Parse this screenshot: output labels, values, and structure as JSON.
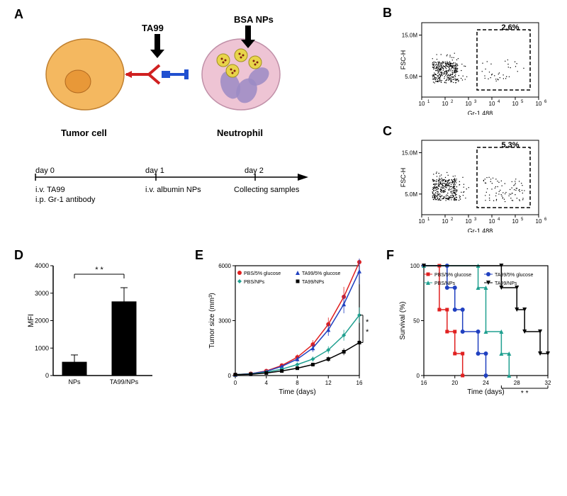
{
  "panelA": {
    "label": "A",
    "ta99_label": "TA99",
    "bsa_label": "BSA NPs",
    "tumor_label": "Tumor cell",
    "neutrophil_label": "Neutrophil",
    "timeline": {
      "day0_label": "day 0",
      "day0_text1": "i.v. TA99",
      "day0_text2": "i.p. Gr-1 antibody",
      "day1_label": "day 1",
      "day1_text": "i.v. albumin NPs",
      "day2_label": "day 2",
      "day2_text": "Collecting samples"
    },
    "tumor_color": "#f4b860",
    "tumor_nucleus": "#e89838",
    "neutrophil_color": "#eec4d4",
    "neutrophil_nucleus": "#9b8bc4",
    "np_color": "#e8d44a",
    "antibody_red": "#d02020",
    "antibody_blue": "#2050d0"
  },
  "panelB": {
    "label": "B",
    "gate_percent": "2.6%",
    "x_label": "Gr-1 488",
    "y_label": "FSC-H",
    "y_ticks": [
      "5.0M",
      "15.0M"
    ],
    "x_ticks": [
      "10¹",
      "10²",
      "10³",
      "10⁴",
      "10⁵",
      "10⁶"
    ]
  },
  "panelC": {
    "label": "C",
    "gate_percent": "5.3%",
    "x_label": "Gr-1 488",
    "y_label": "FSC-H",
    "y_ticks": [
      "5.0M",
      "15.0M"
    ],
    "x_ticks": [
      "10¹",
      "10²",
      "10³",
      "10⁴",
      "10⁵",
      "10⁶"
    ]
  },
  "panelD": {
    "label": "D",
    "y_label": "MFI",
    "x_labels": [
      "NPs",
      "TA99/NPs"
    ],
    "values": [
      500,
      2700
    ],
    "errors": [
      250,
      500
    ],
    "ylim": [
      0,
      4000
    ],
    "ytick_step": 1000,
    "bar_color": "#000000",
    "sig": "* *"
  },
  "panelE": {
    "label": "E",
    "y_label": "Tumor size (mm³)",
    "x_label": "Time (days)",
    "xlim": [
      0,
      16
    ],
    "ylim": [
      0,
      6000
    ],
    "xtick_step": 4,
    "ytick_step": 3000,
    "legend": [
      {
        "name": "PBS/5% glucose",
        "color": "#e02020",
        "marker": "circle"
      },
      {
        "name": "TA99/5% glucose",
        "color": "#2040c0",
        "marker": "triangle"
      },
      {
        "name": "PBS/NPs",
        "color": "#20a090",
        "marker": "diamond"
      },
      {
        "name": "TA99/NPs",
        "color": "#000000",
        "marker": "square"
      }
    ],
    "series": {
      "x": [
        0,
        2,
        4,
        6,
        8,
        10,
        12,
        14,
        16
      ],
      "pbs_glucose": [
        50,
        100,
        250,
        550,
        1000,
        1700,
        2800,
        4300,
        6200
      ],
      "ta99_glucose": [
        50,
        100,
        230,
        500,
        900,
        1500,
        2500,
        3900,
        5700
      ],
      "pbs_nps": [
        50,
        80,
        180,
        350,
        600,
        900,
        1400,
        2200,
        3300
      ],
      "ta99_nps": [
        50,
        70,
        140,
        250,
        400,
        600,
        900,
        1300,
        1800
      ]
    },
    "sig": "* *"
  },
  "panelF": {
    "label": "F",
    "y_label": "Survival (%)",
    "x_label": "Time (days)",
    "xlim": [
      16,
      32
    ],
    "ylim": [
      0,
      100
    ],
    "xtick_step": 4,
    "ytick_step": 50,
    "legend": [
      {
        "name": "PBS/5% glucose",
        "color": "#e02020",
        "marker": "square"
      },
      {
        "name": "TA99/5% glucose",
        "color": "#2040c0",
        "marker": "circle"
      },
      {
        "name": "PBS/NPs",
        "color": "#20a090",
        "marker": "triangle"
      },
      {
        "name": "TA99/NPs",
        "color": "#000000",
        "marker": "invtriangle"
      }
    ],
    "survival": {
      "pbs_glucose": [
        [
          16,
          100
        ],
        [
          18,
          100
        ],
        [
          18,
          60
        ],
        [
          19,
          60
        ],
        [
          19,
          40
        ],
        [
          20,
          40
        ],
        [
          20,
          20
        ],
        [
          21,
          20
        ],
        [
          21,
          0
        ]
      ],
      "ta99_glucose": [
        [
          16,
          100
        ],
        [
          19,
          100
        ],
        [
          19,
          80
        ],
        [
          20,
          80
        ],
        [
          20,
          60
        ],
        [
          21,
          60
        ],
        [
          21,
          40
        ],
        [
          23,
          40
        ],
        [
          23,
          20
        ],
        [
          24,
          20
        ],
        [
          24,
          0
        ]
      ],
      "pbs_nps": [
        [
          16,
          100
        ],
        [
          23,
          100
        ],
        [
          23,
          80
        ],
        [
          24,
          80
        ],
        [
          24,
          40
        ],
        [
          26,
          40
        ],
        [
          26,
          20
        ],
        [
          27,
          20
        ],
        [
          27,
          0
        ]
      ],
      "ta99_nps": [
        [
          16,
          100
        ],
        [
          26,
          100
        ],
        [
          26,
          80
        ],
        [
          28,
          80
        ],
        [
          28,
          60
        ],
        [
          29,
          60
        ],
        [
          29,
          40
        ],
        [
          31,
          40
        ],
        [
          31,
          20
        ],
        [
          32,
          20
        ]
      ]
    },
    "sig": "* *"
  }
}
